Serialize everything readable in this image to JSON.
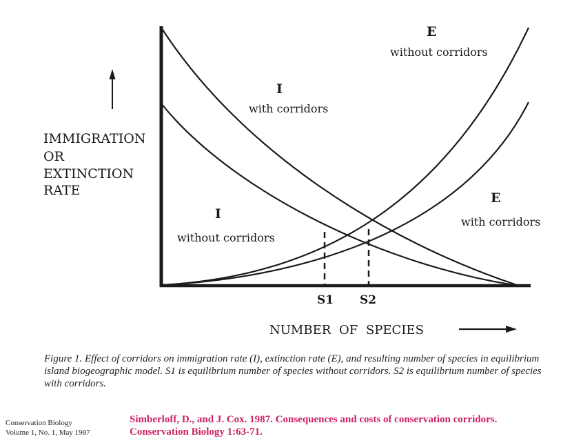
{
  "diagram": {
    "y_axis_label": [
      "IMMIGRATION",
      "OR",
      "EXTINCTION",
      "RATE"
    ],
    "x_axis_label": "NUMBER OF SPECIES",
    "curves": {
      "e_without": {
        "letter": "E",
        "sub": "without corridors"
      },
      "i_with": {
        "letter": "I",
        "sub": "with corridors"
      },
      "i_without": {
        "letter": "I",
        "sub": "without corridors"
      },
      "e_with": {
        "letter": "E",
        "sub": "with corridors"
      }
    },
    "equilibria": {
      "s1": "S1",
      "s2": "S2"
    }
  },
  "caption": "Figure 1. Effect of corridors on immigration rate (I), extinction rate (E), and resulting number of species in equilibrium island biogeographic model. S1 is equilibrium number of species without corridors. S2 is equilibrium number of species with corridors.",
  "journal": {
    "line1": "Conservation Biology",
    "line2": "Volume 1, No. 1, May 1987"
  },
  "citation": {
    "line1": "Simberloff, D., and J. Cox. 1987. Consequences and costs of conservation corridors.",
    "line2": "Conservation Biology 1:63-71."
  },
  "colors": {
    "ink": "#1a1a1a",
    "citation": "#cc2266"
  }
}
